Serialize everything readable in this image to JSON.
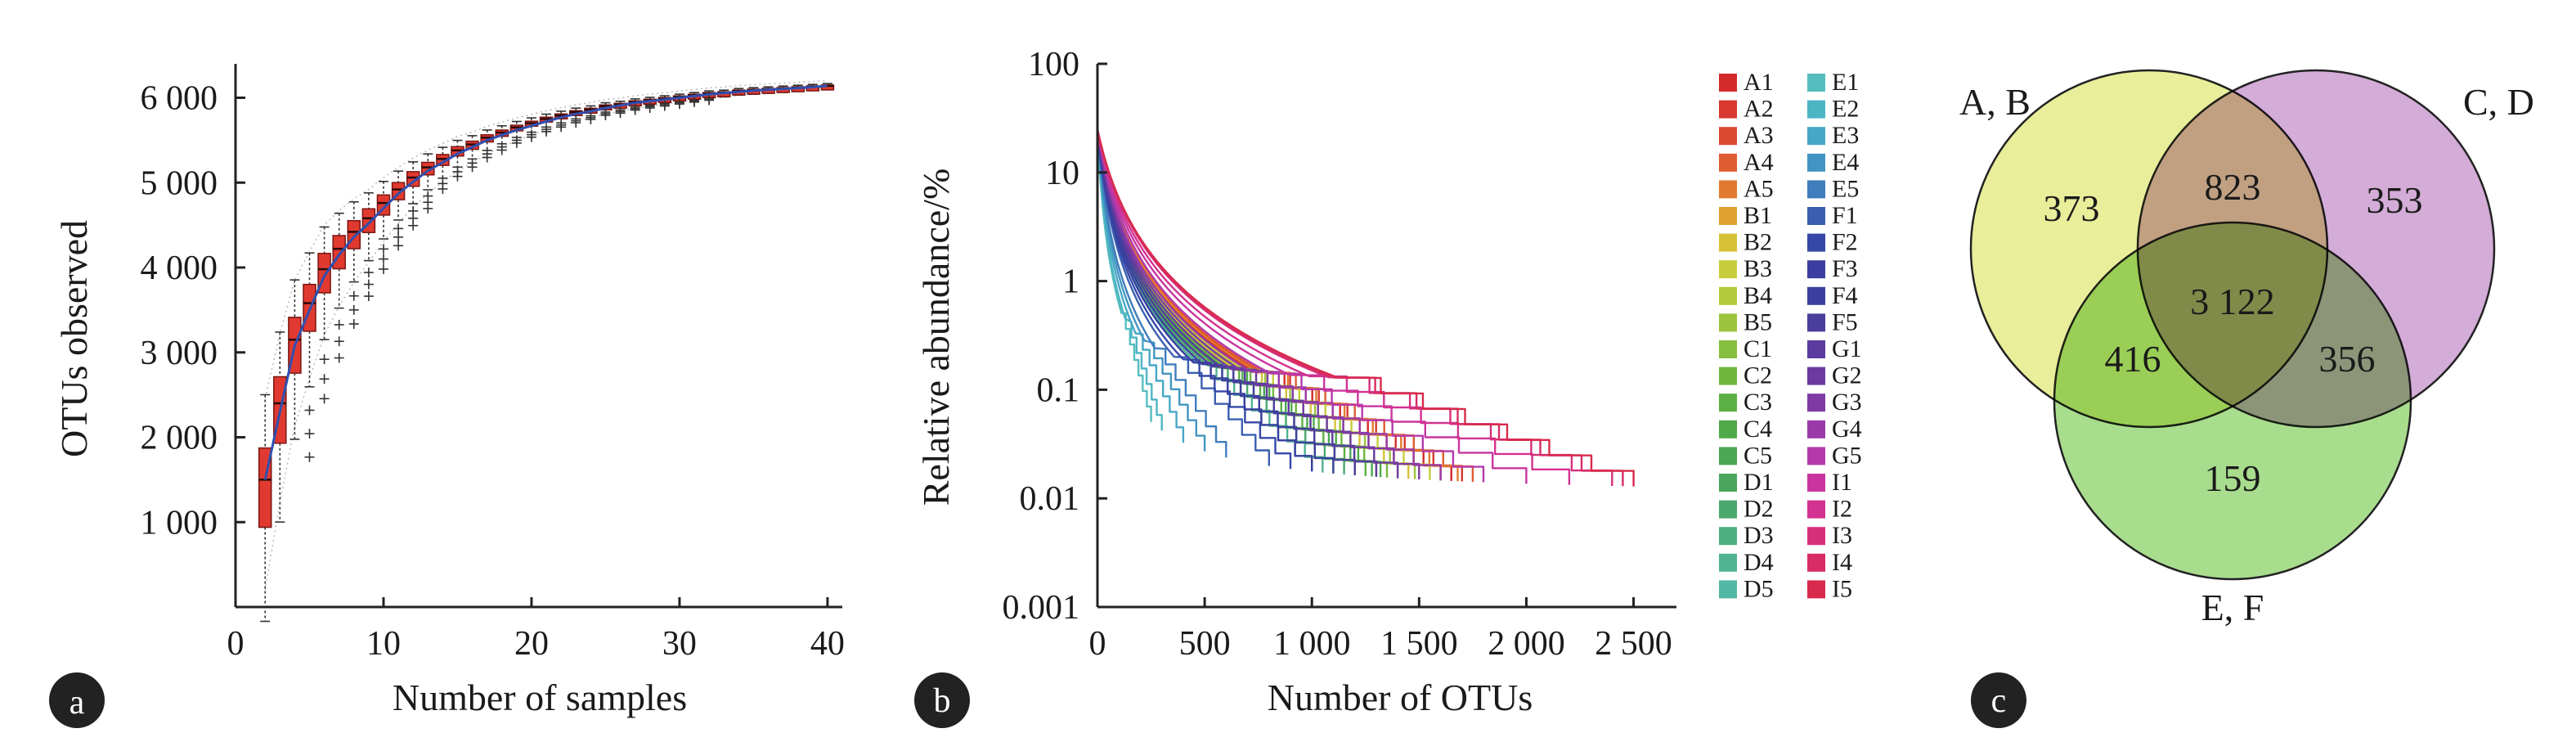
{
  "colors": {
    "box": "#e03a30",
    "box_stroke": "#7a1512",
    "median_line": "#2f4fb0",
    "badge": "#222222",
    "venn_ab": "#e8ee9a",
    "venn_cd": "#d4acd8",
    "venn_ef": "#a9dd8e"
  },
  "panels": {
    "a": {
      "badge": "a"
    },
    "b": {
      "badge": "b"
    },
    "c": {
      "badge": "c"
    }
  },
  "chart_data": [
    {
      "type": "box",
      "panel": "a",
      "xlabel": "Number of samples",
      "ylabel": "OTUs observed",
      "xlim": [
        0,
        41
      ],
      "ylim": [
        0,
        6400
      ],
      "x_ticks": [
        {
          "v": 0,
          "label": "0"
        },
        {
          "v": 10,
          "label": "10"
        },
        {
          "v": 20,
          "label": "20"
        },
        {
          "v": 30,
          "label": "30"
        },
        {
          "v": 40,
          "label": "40"
        }
      ],
      "y_ticks": [
        {
          "v": 1000,
          "label": "1 000"
        },
        {
          "v": 2000,
          "label": "2 000"
        },
        {
          "v": 3000,
          "label": "3 000"
        },
        {
          "v": 4000,
          "label": "4 000"
        },
        {
          "v": 5000,
          "label": "5 000"
        },
        {
          "v": 6000,
          "label": "6 000"
        }
      ],
      "x": [
        2,
        3,
        4,
        5,
        6,
        7,
        8,
        9,
        10,
        11,
        12,
        13,
        14,
        15,
        16,
        17,
        18,
        19,
        20,
        21,
        22,
        23,
        24,
        25,
        26,
        27,
        28,
        29,
        30,
        31,
        32,
        33,
        34,
        35,
        36,
        37,
        38,
        39,
        40
      ],
      "median": [
        1500,
        2400,
        3150,
        3580,
        3980,
        4220,
        4420,
        4580,
        4760,
        4920,
        5060,
        5180,
        5280,
        5380,
        5450,
        5530,
        5590,
        5650,
        5700,
        5750,
        5790,
        5830,
        5860,
        5900,
        5920,
        5950,
        5970,
        5990,
        6010,
        6030,
        6050,
        6060,
        6080,
        6090,
        6100,
        6110,
        6120,
        6130,
        6140
      ],
      "mean": [
        1500,
        2300,
        3080,
        3500,
        3900,
        4150,
        4360,
        4520,
        4700,
        4870,
        5010,
        5140,
        5240,
        5340,
        5420,
        5500,
        5560,
        5620,
        5670,
        5720,
        5770,
        5810,
        5840,
        5880,
        5910,
        5940,
        5960,
        5980,
        6000,
        6020,
        6040,
        6055,
        6070,
        6085,
        6095,
        6105,
        6115,
        6125,
        6140
      ]
    },
    {
      "type": "line",
      "panel": "b",
      "xlabel": "Number of OTUs",
      "ylabel": "Relative abundance/%",
      "yscale": "log",
      "xlim": [
        0,
        2700
      ],
      "ylim": [
        0.001,
        100
      ],
      "x_ticks": [
        {
          "v": 0,
          "label": "0"
        },
        {
          "v": 500,
          "label": "500"
        },
        {
          "v": 1000,
          "label": "1 000"
        },
        {
          "v": 1500,
          "label": "1 500"
        },
        {
          "v": 2000,
          "label": "2 000"
        },
        {
          "v": 2500,
          "label": "2 500"
        }
      ],
      "y_ticks": [
        {
          "v": 0.001,
          "label": "0.001"
        },
        {
          "v": 0.01,
          "label": "0.01"
        },
        {
          "v": 0.1,
          "label": "0.1"
        },
        {
          "v": 1,
          "label": "1"
        },
        {
          "v": 10,
          "label": "10"
        },
        {
          "v": 100,
          "label": "100"
        }
      ],
      "legend_position": "right",
      "series": [
        {
          "name": "A1",
          "color": "#d42a2a",
          "max_otus": 1650
        },
        {
          "name": "A2",
          "color": "#d8382e",
          "max_otus": 1700
        },
        {
          "name": "A3",
          "color": "#dc4a30",
          "max_otus": 1600
        },
        {
          "name": "A4",
          "color": "#df5c32",
          "max_otus": 1750
        },
        {
          "name": "A5",
          "color": "#e17a30",
          "max_otus": 1680
        },
        {
          "name": "B1",
          "color": "#e0a030",
          "max_otus": 1500
        },
        {
          "name": "B2",
          "color": "#d7c136",
          "max_otus": 1450
        },
        {
          "name": "B3",
          "color": "#c8cc3a",
          "max_otus": 1550
        },
        {
          "name": "B4",
          "color": "#b2c93c",
          "max_otus": 1400
        },
        {
          "name": "B5",
          "color": "#9cc43e",
          "max_otus": 1480
        },
        {
          "name": "C1",
          "color": "#86be3e",
          "max_otus": 1300
        },
        {
          "name": "C2",
          "color": "#6fb83e",
          "max_otus": 1350
        },
        {
          "name": "C3",
          "color": "#5cb043",
          "max_otus": 1250
        },
        {
          "name": "C4",
          "color": "#4faa4a",
          "max_otus": 1320
        },
        {
          "name": "C5",
          "color": "#4aa753",
          "max_otus": 1280
        },
        {
          "name": "D1",
          "color": "#49a65c",
          "max_otus": 1200
        },
        {
          "name": "D2",
          "color": "#4aa96c",
          "max_otus": 1150
        },
        {
          "name": "D3",
          "color": "#4dae7e",
          "max_otus": 1100
        },
        {
          "name": "D4",
          "color": "#4fb391",
          "max_otus": 1050
        },
        {
          "name": "D5",
          "color": "#52b8a4",
          "max_otus": 1000
        },
        {
          "name": "E1",
          "color": "#55bdbd",
          "max_otus": 250
        },
        {
          "name": "E2",
          "color": "#4cb5c4",
          "max_otus": 300
        },
        {
          "name": "E3",
          "color": "#46a7c6",
          "max_otus": 400
        },
        {
          "name": "E4",
          "color": "#4295c2",
          "max_otus": 500
        },
        {
          "name": "E5",
          "color": "#3f7dbc",
          "max_otus": 600
        },
        {
          "name": "F1",
          "color": "#3a5fb0",
          "max_otus": 800
        },
        {
          "name": "F2",
          "color": "#3548a8",
          "max_otus": 900
        },
        {
          "name": "F3",
          "color": "#3a3ea0",
          "max_otus": 1000
        },
        {
          "name": "F4",
          "color": "#3b3f9e",
          "max_otus": 1100
        },
        {
          "name": "F5",
          "color": "#4a3e9c",
          "max_otus": 1200
        },
        {
          "name": "G1",
          "color": "#5a3c9e",
          "max_otus": 1300
        },
        {
          "name": "G2",
          "color": "#6b3aa0",
          "max_otus": 1400
        },
        {
          "name": "G3",
          "color": "#7f3aa4",
          "max_otus": 1500
        },
        {
          "name": "G4",
          "color": "#9a3aa8",
          "max_otus": 1600
        },
        {
          "name": "G5",
          "color": "#b43aac",
          "max_otus": 1800
        },
        {
          "name": "I1",
          "color": "#c8359f",
          "max_otus": 2000
        },
        {
          "name": "I2",
          "color": "#d23290",
          "max_otus": 2200
        },
        {
          "name": "I3",
          "color": "#d62f7c",
          "max_otus": 2400
        },
        {
          "name": "I4",
          "color": "#d82c66",
          "max_otus": 2450
        },
        {
          "name": "I5",
          "color": "#d82a4c",
          "max_otus": 2500
        }
      ]
    },
    {
      "type": "venn",
      "panel": "c",
      "sets": [
        {
          "name": "A, B",
          "color": "#e8ee9a"
        },
        {
          "name": "C, D",
          "color": "#d4acd8"
        },
        {
          "name": "E, F",
          "color": "#a9dd8e"
        }
      ],
      "regions": {
        "ab_only": "373",
        "cd_only": "353",
        "ef_only": "159",
        "ab_cd": "823",
        "ab_ef": "416",
        "cd_ef": "356",
        "all": "3 122"
      }
    }
  ]
}
